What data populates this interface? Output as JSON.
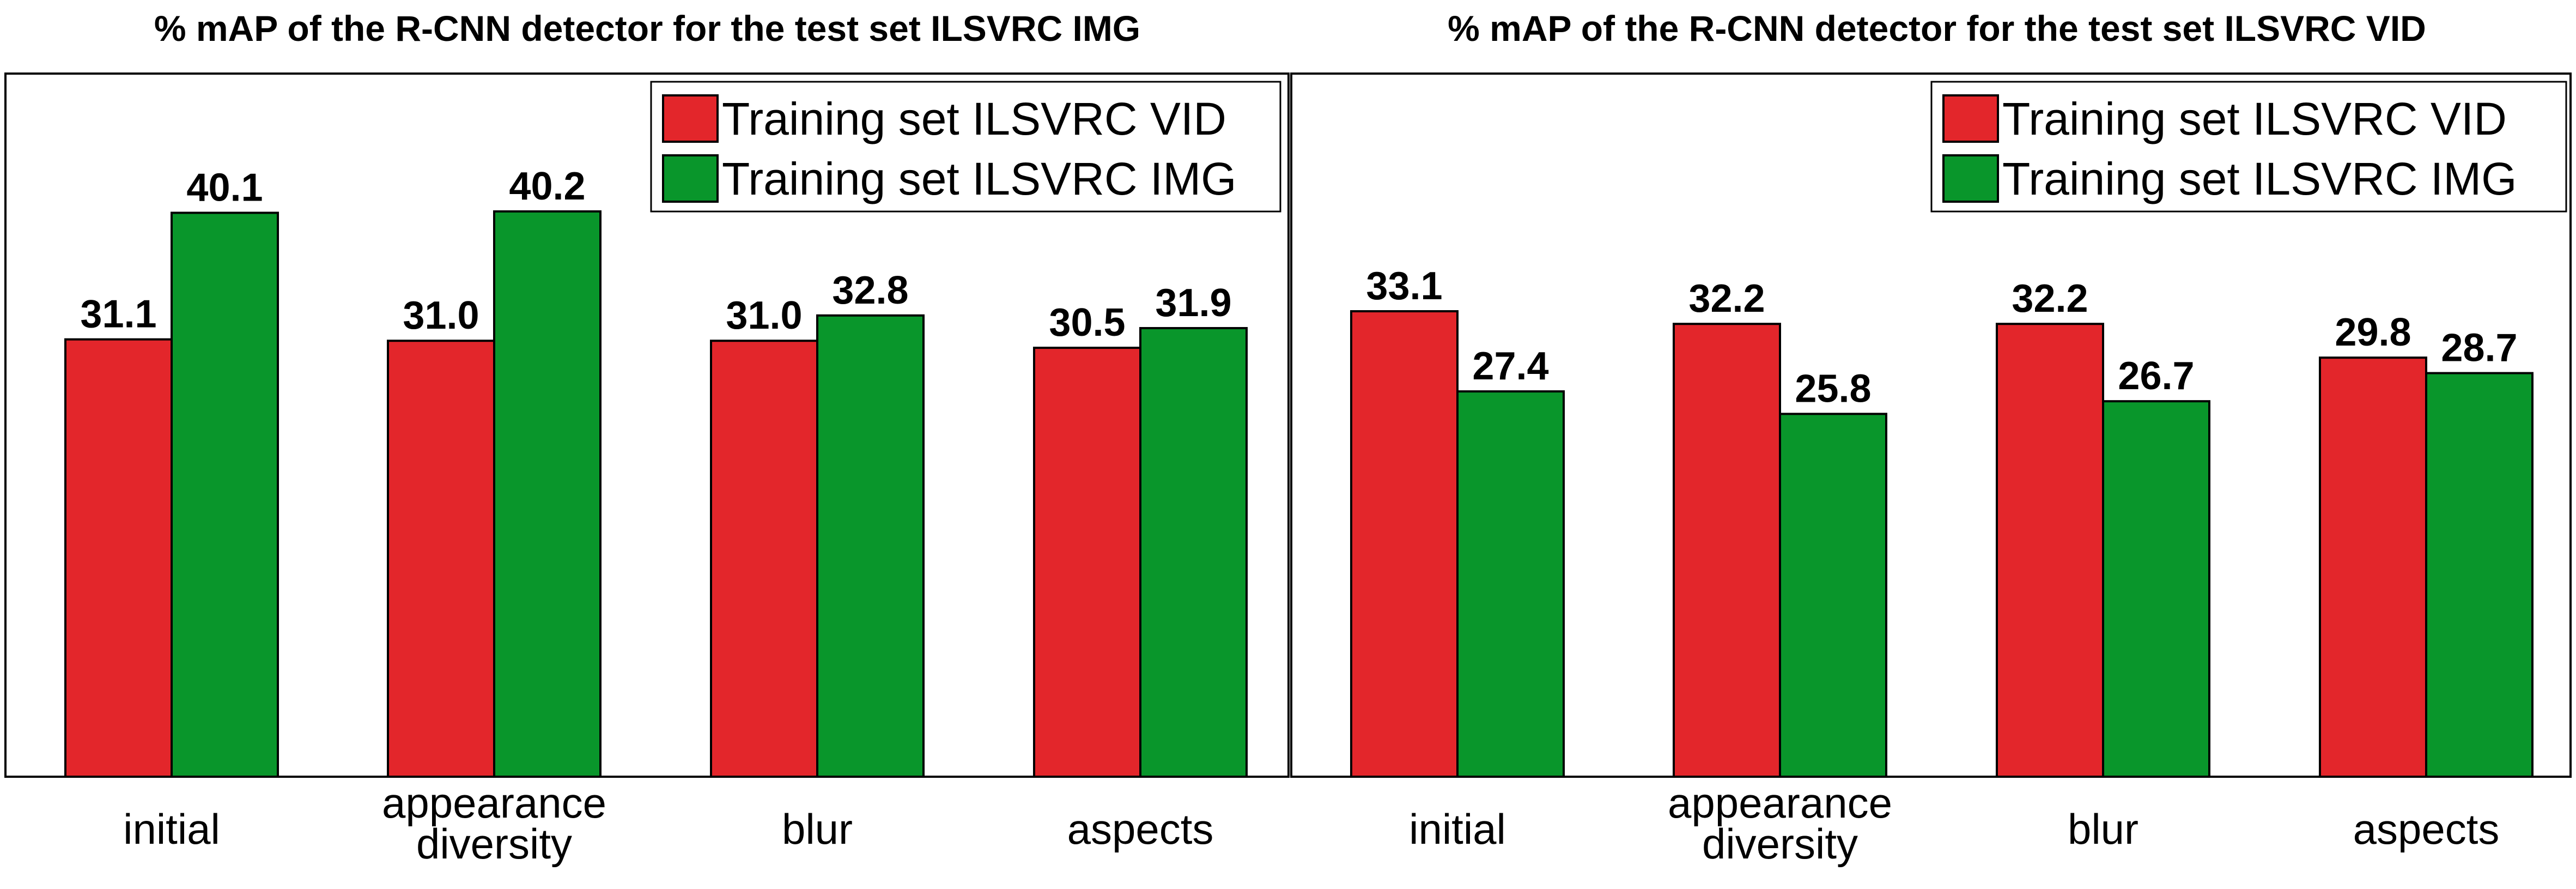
{
  "colors": {
    "series_1": "#e3262b",
    "series_2": "#09962b"
  },
  "chart_data": [
    {
      "type": "bar",
      "title": "% mAP of the R-CNN detector for the test set ILSVRC IMG",
      "categories": [
        [
          "initial"
        ],
        [
          "appearance",
          "diversity"
        ],
        [
          "blur"
        ],
        [
          "aspects"
        ]
      ],
      "series": [
        {
          "name": "Training set ILSVRC VID",
          "values": [
            31.1,
            31.0,
            31.0,
            30.5
          ]
        },
        {
          "name": "Training set ILSVRC IMG",
          "values": [
            40.1,
            40.2,
            32.8,
            31.9
          ]
        }
      ],
      "value_labels": [
        [
          "31.1",
          "31.0",
          "31.0",
          "30.5"
        ],
        [
          "40.1",
          "40.2",
          "32.8",
          "31.9"
        ]
      ],
      "ylim": [
        0,
        50
      ],
      "grid": false,
      "legend_position": "top-right"
    },
    {
      "type": "bar",
      "title": "% mAP of the R-CNN detector for the test set ILSVRC VID",
      "categories": [
        [
          "initial"
        ],
        [
          "appearance",
          "diversity"
        ],
        [
          "blur"
        ],
        [
          "aspects"
        ]
      ],
      "series": [
        {
          "name": "Training set ILSVRC VID",
          "values": [
            33.1,
            32.2,
            32.2,
            29.8
          ]
        },
        {
          "name": "Training set ILSVRC IMG",
          "values": [
            27.4,
            25.8,
            26.7,
            28.7
          ]
        }
      ],
      "value_labels": [
        [
          "33.1",
          "32.2",
          "32.2",
          "29.8"
        ],
        [
          "27.4",
          "25.8",
          "26.7",
          "28.7"
        ]
      ],
      "ylim": [
        0,
        50
      ],
      "grid": false,
      "legend_position": "top-right"
    }
  ]
}
